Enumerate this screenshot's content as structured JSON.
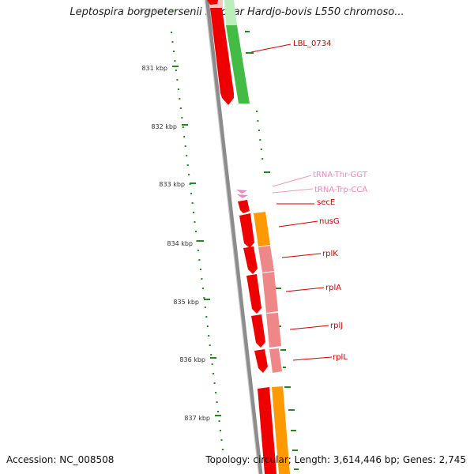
{
  "title": "Leptospira borgpetersenii serovar Hardjo-bovis L550 chromoso...",
  "footer": {
    "accession": "Accession: NC_008508",
    "summary": "Topology: circular; Length: 3,614,446 bp; Genes: 2,745"
  },
  "ruler": {
    "ticks": [
      {
        "label": "830 kbp",
        "faint": true
      },
      {
        "label": "831 kbp"
      },
      {
        "label": "832 kbp"
      },
      {
        "label": "833 kbp"
      },
      {
        "label": "834 kbp"
      },
      {
        "label": "835 kbp"
      },
      {
        "label": "836 kbp"
      },
      {
        "label": "837 kbp"
      }
    ]
  },
  "features": [
    {
      "name": "LBL_0734",
      "color": "#cc0000"
    },
    {
      "name": "tRNA-Thr-GGT",
      "color": "#ee88bb"
    },
    {
      "name": "tRNA-Trp-CCA",
      "color": "#ee88bb"
    },
    {
      "name": "secE",
      "color": "#cc0000"
    },
    {
      "name": "nusG",
      "color": "#cc0000"
    },
    {
      "name": "rplK",
      "color": "#cc0000"
    },
    {
      "name": "rplA",
      "color": "#cc0000"
    },
    {
      "name": "rplJ",
      "color": "#cc0000"
    },
    {
      "name": "rplL",
      "color": "#cc0000"
    }
  ],
  "colors": {
    "backbone": "#8c8c8c",
    "cds": "#ff0000",
    "trna": "#ee88bb",
    "cog_green": "#44bb44",
    "cog_orange": "#ff9900",
    "cog_pink": "#ee8888",
    "gc_skew": "#228822"
  }
}
